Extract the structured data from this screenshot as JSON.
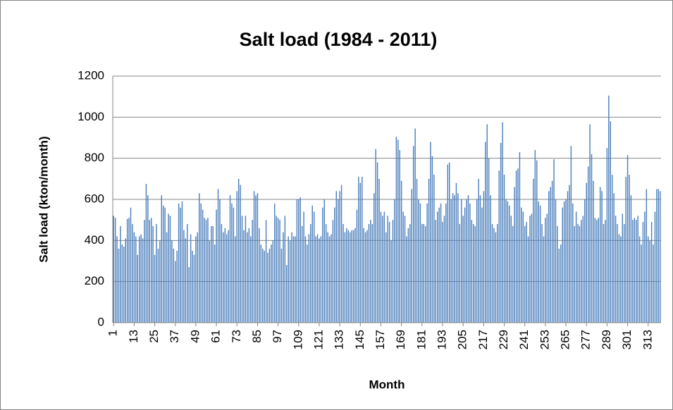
{
  "chart_data": {
    "type": "bar",
    "title": "Salt load (1984 - 2011)",
    "x_label": "Month",
    "y_label": "Salt load (kton/month)",
    "color": "#4f81bd",
    "grid": true,
    "ylim": [
      0,
      1200
    ],
    "yticks": [
      0,
      200,
      400,
      600,
      800,
      1000,
      1200
    ],
    "categories": [
      1,
      null,
      null,
      null,
      null,
      null,
      null,
      null,
      null,
      null,
      null,
      null,
      13,
      null,
      null,
      null,
      null,
      null,
      null,
      null,
      null,
      null,
      null,
      null,
      25,
      null,
      null,
      null,
      null,
      null,
      null,
      null,
      null,
      null,
      null,
      null,
      37,
      null,
      null,
      null,
      null,
      null,
      null,
      null,
      null,
      null,
      null,
      null,
      49,
      null,
      null,
      null,
      null,
      null,
      null,
      null,
      null,
      null,
      null,
      null,
      61,
      null,
      null,
      null,
      null,
      null,
      null,
      null,
      null,
      null,
      null,
      null,
      73,
      null,
      null,
      null,
      null,
      null,
      null,
      null,
      null,
      null,
      null,
      null,
      85,
      null,
      null,
      null,
      null,
      null,
      null,
      null,
      null,
      null,
      null,
      null,
      97,
      null,
      null,
      null,
      null,
      null,
      null,
      null,
      null,
      null,
      null,
      null,
      109,
      null,
      null,
      null,
      null,
      null,
      null,
      null,
      null,
      null,
      null,
      null,
      121,
      null,
      null,
      null,
      null,
      null,
      null,
      null,
      null,
      null,
      null,
      null,
      133,
      null,
      null,
      null,
      null,
      null,
      null,
      null,
      null,
      null,
      null,
      null,
      145,
      null,
      null,
      null,
      null,
      null,
      null,
      null,
      null,
      null,
      null,
      null,
      157,
      null,
      null,
      null,
      null,
      null,
      null,
      null,
      null,
      null,
      null,
      null,
      169,
      null,
      null,
      null,
      null,
      null,
      null,
      null,
      null,
      null,
      null,
      null,
      181,
      null,
      null,
      null,
      null,
      null,
      null,
      null,
      null,
      null,
      null,
      null,
      193,
      null,
      null,
      null,
      null,
      null,
      null,
      null,
      null,
      null,
      null,
      null,
      205,
      null,
      null,
      null,
      null,
      null,
      null,
      null,
      null,
      null,
      null,
      null,
      217,
      null,
      null,
      null,
      null,
      null,
      null,
      null,
      null,
      null,
      null,
      null,
      229,
      null,
      null,
      null,
      null,
      null,
      null,
      null,
      null,
      null,
      null,
      null,
      241,
      null,
      null,
      null,
      null,
      null,
      null,
      null,
      null,
      null,
      null,
      null,
      253,
      null,
      null,
      null,
      null,
      null,
      null,
      null,
      null,
      null,
      null,
      null,
      265,
      null,
      null,
      null,
      null,
      null,
      null,
      null,
      null,
      null,
      null,
      null,
      277,
      null,
      null,
      null,
      null,
      null,
      null,
      null,
      null,
      null,
      null,
      null,
      289,
      null,
      null,
      null,
      null,
      null,
      null,
      null,
      null,
      null,
      null,
      null,
      301,
      null,
      null,
      null,
      null,
      null,
      null,
      null,
      null,
      null,
      null,
      null,
      313,
      null,
      null,
      null,
      null,
      null,
      null,
      null
    ],
    "values": [
      520,
      510,
      420,
      360,
      470,
      380,
      370,
      410,
      505,
      510,
      560,
      480,
      440,
      420,
      330,
      420,
      430,
      410,
      500,
      675,
      620,
      500,
      510,
      470,
      330,
      480,
      360,
      400,
      620,
      570,
      560,
      440,
      530,
      520,
      400,
      360,
      300,
      350,
      580,
      560,
      590,
      450,
      410,
      480,
      270,
      430,
      350,
      330,
      420,
      440,
      630,
      580,
      550,
      510,
      500,
      510,
      400,
      470,
      470,
      380,
      550,
      650,
      600,
      480,
      440,
      460,
      430,
      450,
      620,
      580,
      560,
      420,
      640,
      700,
      670,
      520,
      450,
      520,
      440,
      460,
      420,
      500,
      640,
      620,
      630,
      460,
      380,
      360,
      350,
      500,
      340,
      360,
      380,
      400,
      580,
      520,
      510,
      500,
      360,
      440,
      520,
      280,
      420,
      400,
      440,
      420,
      420,
      600,
      600,
      610,
      470,
      540,
      420,
      380,
      430,
      480,
      570,
      540,
      420,
      430,
      410,
      420,
      560,
      600,
      480,
      440,
      420,
      430,
      500,
      560,
      640,
      600,
      640,
      670,
      480,
      440,
      460,
      450,
      440,
      450,
      450,
      460,
      550,
      710,
      680,
      710,
      460,
      440,
      450,
      480,
      500,
      480,
      630,
      845,
      780,
      700,
      540,
      520,
      540,
      440,
      520,
      490,
      400,
      500,
      600,
      905,
      890,
      840,
      690,
      540,
      520,
      420,
      460,
      480,
      650,
      860,
      945,
      700,
      600,
      580,
      480,
      480,
      470,
      580,
      700,
      880,
      810,
      720,
      500,
      540,
      560,
      580,
      490,
      520,
      580,
      770,
      780,
      600,
      630,
      620,
      680,
      630,
      480,
      600,
      520,
      560,
      600,
      620,
      580,
      500,
      480,
      470,
      600,
      700,
      620,
      560,
      640,
      880,
      965,
      800,
      620,
      480,
      460,
      440,
      480,
      740,
      875,
      975,
      720,
      600,
      590,
      570,
      520,
      470,
      660,
      740,
      750,
      830,
      560,
      540,
      470,
      490,
      420,
      520,
      530,
      700,
      840,
      790,
      590,
      570,
      480,
      420,
      510,
      530,
      640,
      660,
      690,
      795,
      600,
      470,
      360,
      380,
      560,
      590,
      600,
      640,
      670,
      860,
      580,
      470,
      540,
      480,
      470,
      500,
      520,
      600,
      680,
      760,
      965,
      820,
      690,
      510,
      500,
      510,
      660,
      640,
      480,
      500,
      850,
      1105,
      980,
      720,
      630,
      520,
      480,
      430,
      420,
      530,
      480,
      710,
      815,
      720,
      620,
      500,
      510,
      500,
      520,
      420,
      380,
      490,
      540,
      650,
      420,
      400,
      490,
      380,
      540,
      650,
      650,
      640
    ]
  }
}
